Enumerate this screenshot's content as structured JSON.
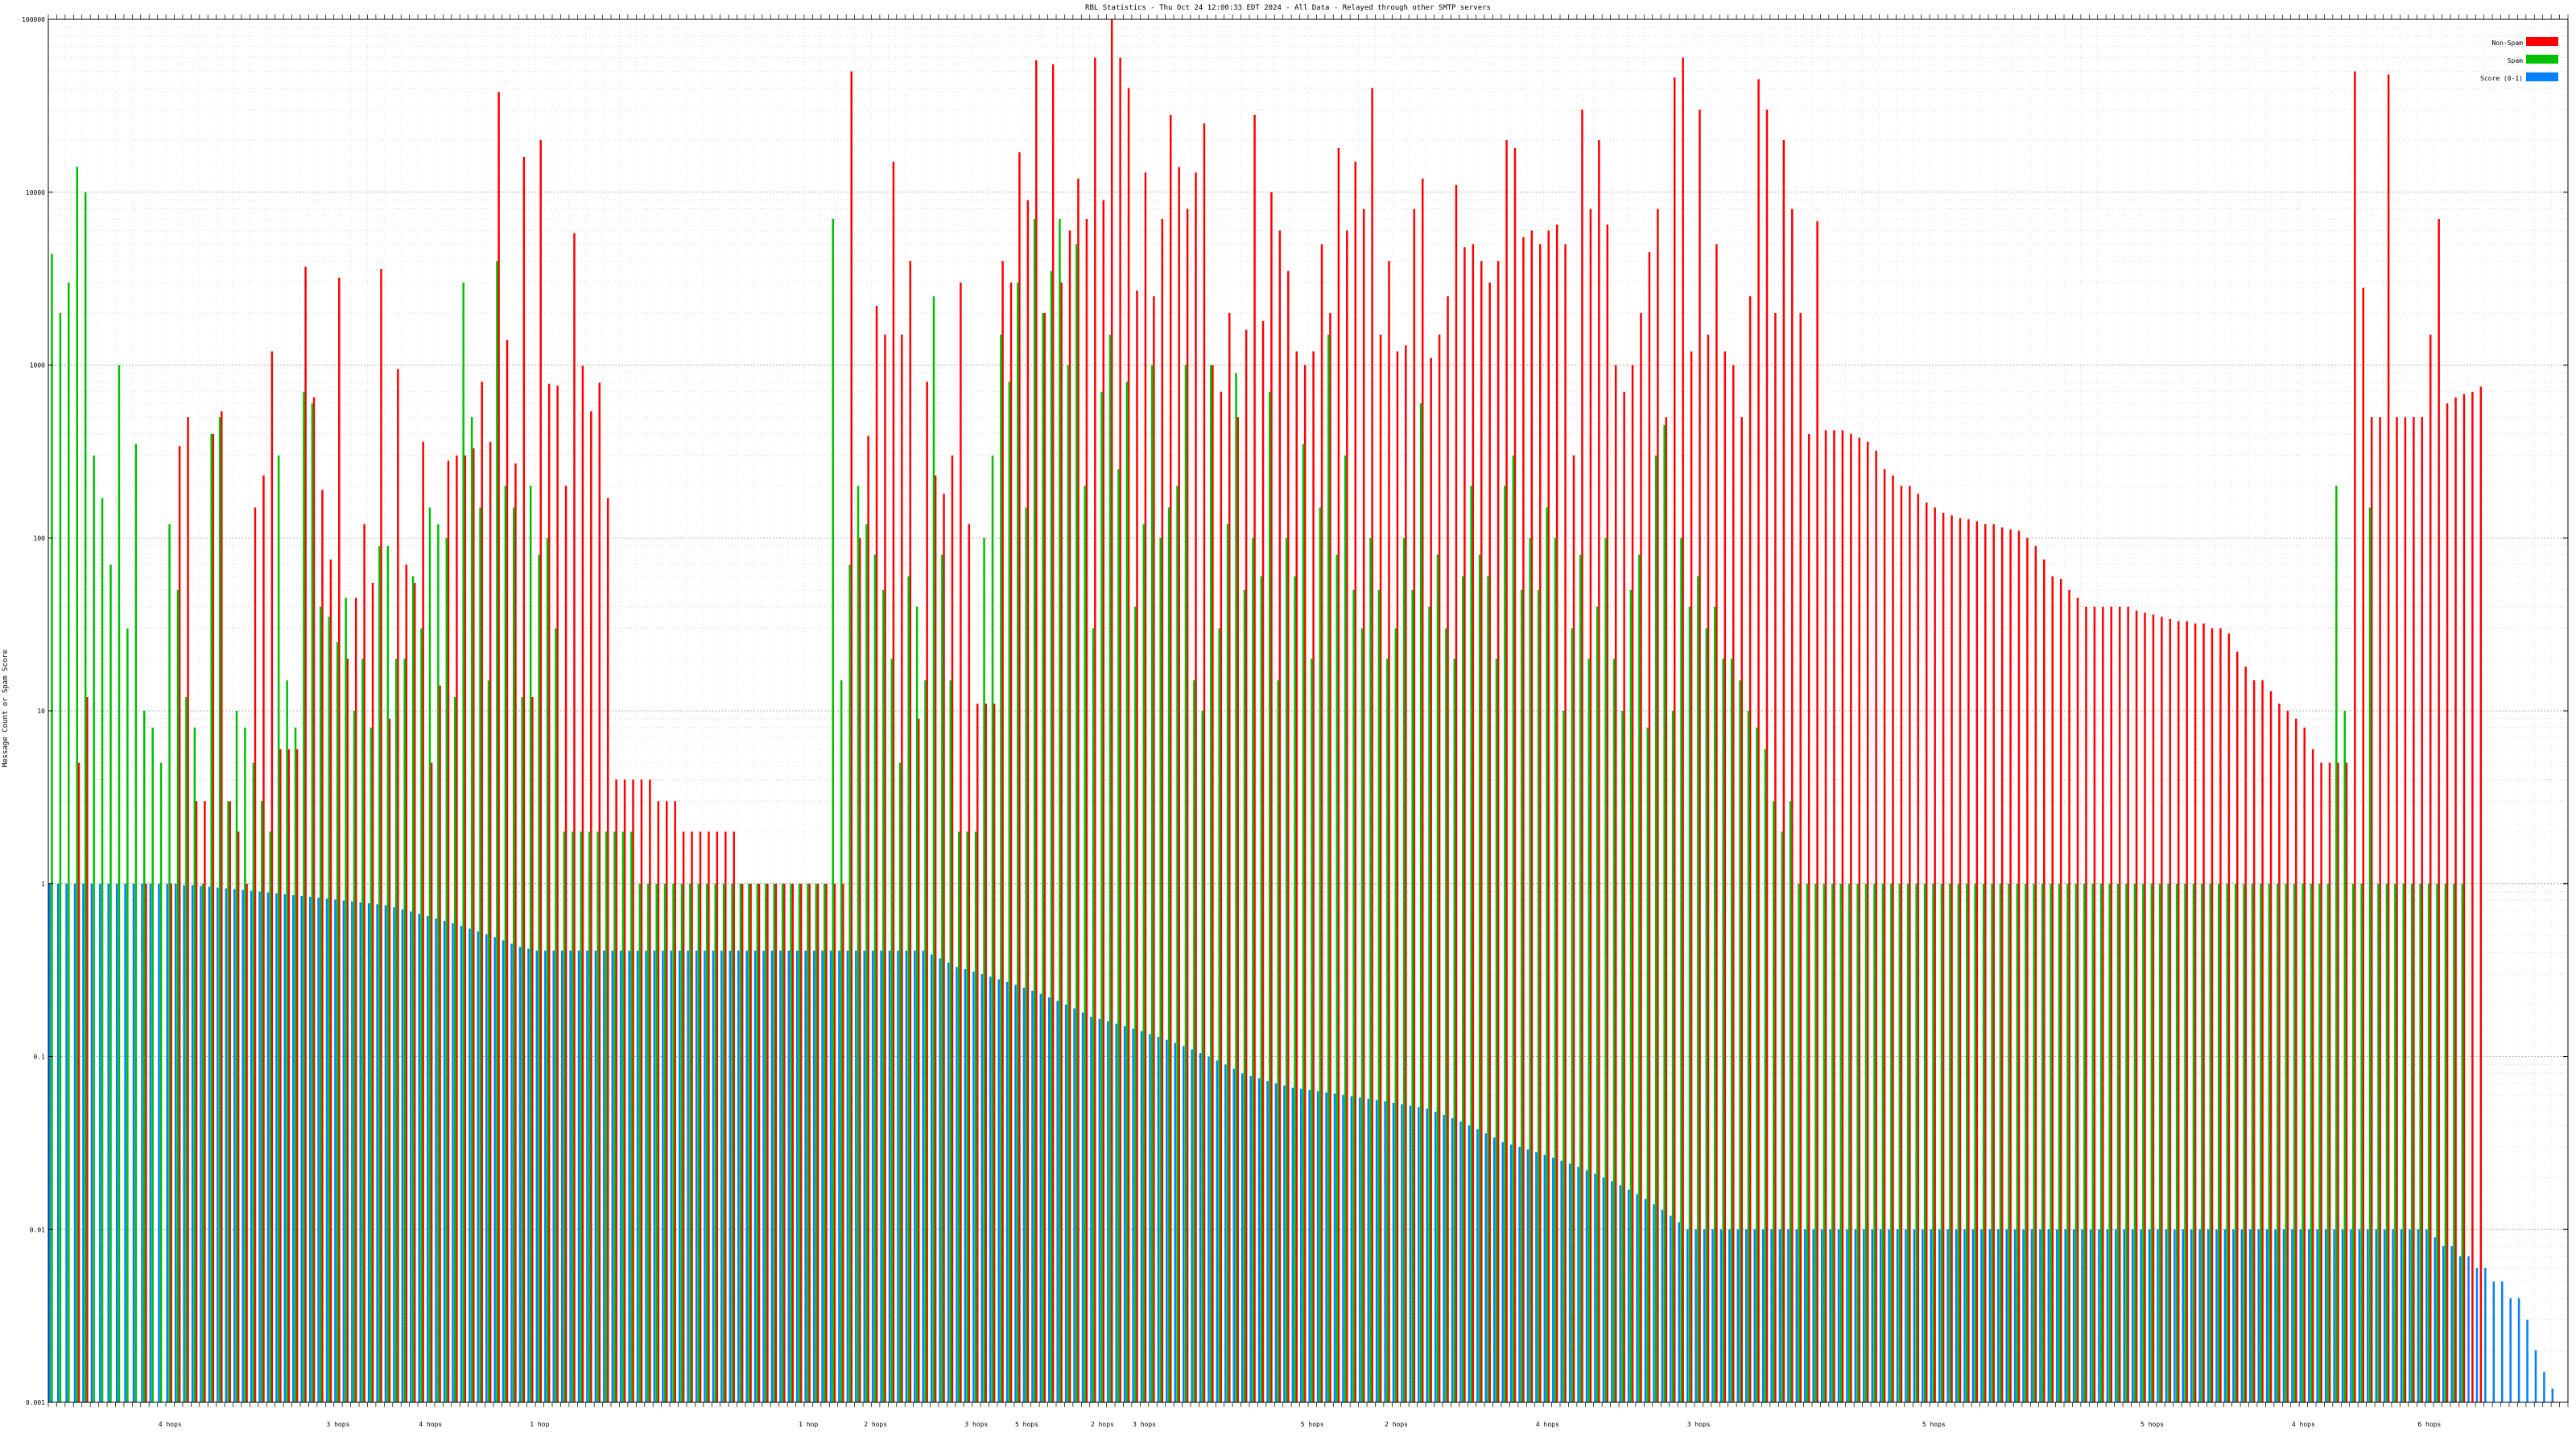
{
  "chart_data": {
    "type": "bar",
    "title": "RBL Statistics - Thu Oct 24 12:00:33 EDT 2024 - All Data - Relayed through other SMTP servers",
    "xlabel": "",
    "ylabel": "Message Count or Spam Score",
    "yscale": "log",
    "ylim": [
      0.001,
      100000
    ],
    "y_ticks": [
      {
        "value": 100000,
        "label": "100000"
      },
      {
        "value": 10000,
        "label": "10000"
      },
      {
        "value": 1000,
        "label": "1000"
      },
      {
        "value": 100,
        "label": "100"
      },
      {
        "value": 10,
        "label": "10"
      },
      {
        "value": 1,
        "label": "1"
      },
      {
        "value": 0.1,
        "label": "0.1"
      },
      {
        "value": 0.01,
        "label": "0.01"
      },
      {
        "value": 0.001,
        "label": "0.001"
      }
    ],
    "grid": true,
    "legend_position": "top-right",
    "n_categories": 300,
    "category_group_labels": [
      {
        "index": 14,
        "label": "4 hops"
      },
      {
        "index": 34,
        "label": "3 hops"
      },
      {
        "index": 45,
        "label": "4 hops"
      },
      {
        "index": 58,
        "label": "1 hop"
      },
      {
        "index": 90,
        "label": "1 hop"
      },
      {
        "index": 98,
        "label": "2 hops"
      },
      {
        "index": 110,
        "label": "3 hops"
      },
      {
        "index": 116,
        "label": "5 hops"
      },
      {
        "index": 125,
        "label": "2 hops"
      },
      {
        "index": 130,
        "label": "3 hops"
      },
      {
        "index": 150,
        "label": "5 hops"
      },
      {
        "index": 160,
        "label": "2 hops"
      },
      {
        "index": 178,
        "label": "4 hops"
      },
      {
        "index": 196,
        "label": "3 hops"
      },
      {
        "index": 224,
        "label": "5 hops"
      },
      {
        "index": 250,
        "label": "5 hops"
      },
      {
        "index": 268,
        "label": "4 hops"
      },
      {
        "index": 283,
        "label": "6 hops"
      }
    ],
    "series": [
      {
        "name": "Non-Spam",
        "color": "#ff0000",
        "values": [
          0,
          0,
          0,
          5,
          12,
          0,
          0,
          0,
          0,
          0,
          0,
          1,
          0,
          0,
          1,
          340,
          500,
          3,
          3,
          400,
          540,
          3,
          2,
          1,
          150,
          230,
          1200,
          6,
          6,
          6,
          3700,
          650,
          190,
          75,
          3200,
          20,
          45,
          120,
          55,
          3600,
          9,
          950,
          70,
          55,
          360,
          5,
          14,
          280,
          300,
          300,
          330,
          800,
          360,
          38000,
          1400,
          270,
          16000,
          12,
          20000,
          780,
          760,
          200,
          5800,
          990,
          540,
          790,
          170,
          4,
          4,
          4,
          4,
          4,
          3,
          3,
          3,
          2,
          2,
          2,
          2,
          2,
          2,
          2,
          1,
          1,
          1,
          1,
          1,
          1,
          1,
          1,
          1,
          1,
          1,
          1,
          1,
          50000,
          100,
          390,
          2200,
          1500,
          15000,
          1500,
          4000,
          9,
          800,
          230,
          180,
          300,
          3000,
          120,
          11,
          11,
          11,
          4000,
          3000,
          17000,
          9000,
          58000,
          2000,
          55000,
          3000,
          6000,
          12000,
          7000,
          60000,
          9000,
          150000,
          60000,
          40000,
          2700,
          13000,
          2500,
          7000,
          28000,
          14000,
          8000,
          13000,
          25000,
          1000,
          700,
          2000,
          500,
          1600,
          28000,
          1800,
          10000,
          6000,
          3500,
          1200,
          1000,
          1200,
          5000,
          2000,
          18000,
          6000,
          15000,
          8000,
          40000,
          1500,
          4000,
          1200,
          1300,
          8000,
          12000,
          1100,
          1500,
          2500,
          11000,
          4800,
          5000,
          4000,
          3000,
          4000,
          20000,
          18000,
          5500,
          6000,
          5000,
          6000,
          6500,
          5000,
          300,
          30000,
          8000,
          20000,
          6500,
          1000,
          700,
          1000,
          2000,
          4500,
          8000,
          500,
          46000,
          60000,
          1200,
          30000,
          1500,
          5000,
          1200,
          1000,
          500,
          2500,
          45000,
          30000,
          2000,
          20000,
          8000,
          2000,
          400,
          6800,
          420,
          420,
          420,
          400,
          380,
          360,
          320,
          250,
          230,
          200,
          200,
          180,
          160,
          150,
          140,
          135,
          130,
          128,
          125,
          120,
          120,
          115,
          112,
          110,
          100,
          90,
          75,
          60,
          58,
          50,
          45,
          40,
          40,
          40,
          40,
          40,
          40,
          38,
          37,
          36,
          35,
          34,
          33,
          33,
          32,
          32,
          30,
          30,
          28,
          22,
          18,
          15,
          15,
          13,
          11,
          10,
          9,
          8,
          6,
          5,
          5,
          5,
          5,
          50000,
          2800,
          500,
          500,
          48000,
          500,
          500,
          500,
          500,
          1500,
          7000,
          600,
          650,
          680,
          700,
          750
        ]
      },
      {
        "name": "Spam",
        "color": "#00c000",
        "values": [
          4400,
          2000,
          3000,
          14000,
          10000,
          300,
          170,
          70,
          1000,
          30,
          350,
          10,
          8,
          5,
          120,
          50,
          12,
          8,
          1,
          400,
          500,
          3,
          10,
          8,
          5,
          3,
          2,
          300,
          15,
          8,
          700,
          600,
          40,
          35,
          25,
          45,
          10,
          20,
          8,
          90,
          90,
          20,
          20,
          60,
          30,
          150,
          120,
          100,
          12,
          3000,
          500,
          150,
          15,
          4000,
          200,
          150,
          12,
          200,
          80,
          100,
          30,
          2,
          2,
          2,
          2,
          2,
          2,
          2,
          2,
          2,
          1,
          1,
          1,
          1,
          1,
          1,
          1,
          1,
          1,
          1,
          1,
          1,
          1,
          1,
          1,
          1,
          1,
          1,
          1,
          1,
          1,
          1,
          1,
          7000,
          15,
          70,
          200,
          120,
          80,
          50,
          20,
          5,
          60,
          40,
          15,
          2500,
          80,
          15,
          2,
          2,
          2,
          100,
          300,
          1500,
          800,
          3000,
          150,
          7000,
          2000,
          3500,
          7000,
          1000,
          5000,
          200,
          30,
          700,
          1500,
          250,
          800,
          40,
          120,
          1000,
          100,
          150,
          200,
          1000,
          15,
          10,
          1000,
          30,
          120,
          900,
          50,
          100,
          60,
          700,
          15,
          100,
          60,
          350,
          20,
          150,
          1500,
          80,
          300,
          50,
          30,
          100,
          50,
          20,
          30,
          100,
          50,
          600,
          40,
          80,
          30,
          20,
          60,
          200,
          80,
          60,
          20,
          200,
          300,
          50,
          100,
          50,
          150,
          100,
          10,
          30,
          80,
          20,
          40,
          100,
          20,
          10,
          50,
          80,
          8,
          300,
          450,
          10,
          100,
          40,
          60,
          30,
          40,
          20,
          20,
          15,
          10,
          8,
          6,
          3,
          2,
          3,
          1,
          1,
          1,
          1,
          1,
          1,
          1,
          1,
          1,
          1,
          1,
          1,
          1,
          1,
          1,
          1,
          1,
          1,
          1,
          1,
          1,
          1,
          1,
          1,
          1,
          1,
          1,
          1,
          1,
          1,
          1,
          1,
          1,
          1,
          1,
          1,
          1,
          1,
          1,
          1,
          1,
          1,
          1,
          1,
          1,
          1,
          1,
          1,
          1,
          1,
          1,
          1,
          1,
          1,
          1,
          1,
          1,
          1,
          1,
          1,
          1,
          1,
          1,
          1,
          200,
          10,
          1,
          1,
          150,
          1,
          1,
          1,
          1,
          1,
          1,
          1,
          1,
          1,
          1,
          1
        ]
      },
      {
        "name": "Score (0-1)",
        "color": "#0080ff",
        "values": [
          1,
          1,
          1,
          1,
          1,
          1,
          1,
          1,
          1,
          1,
          1,
          1,
          1,
          1,
          1,
          1,
          0.98,
          0.98,
          0.97,
          0.96,
          0.95,
          0.94,
          0.93,
          0.92,
          0.91,
          0.9,
          0.89,
          0.88,
          0.87,
          0.86,
          0.85,
          0.84,
          0.83,
          0.82,
          0.81,
          0.8,
          0.79,
          0.78,
          0.77,
          0.76,
          0.75,
          0.73,
          0.71,
          0.69,
          0.67,
          0.65,
          0.63,
          0.61,
          0.59,
          0.57,
          0.55,
          0.53,
          0.51,
          0.49,
          0.47,
          0.45,
          0.43,
          0.42,
          0.41,
          0.41,
          0.41,
          0.41,
          0.41,
          0.41,
          0.41,
          0.41,
          0.41,
          0.41,
          0.41,
          0.41,
          0.41,
          0.41,
          0.41,
          0.41,
          0.41,
          0.41,
          0.41,
          0.41,
          0.41,
          0.41,
          0.41,
          0.41,
          0.41,
          0.41,
          0.41,
          0.41,
          0.41,
          0.41,
          0.41,
          0.41,
          0.41,
          0.41,
          0.41,
          0.41,
          0.41,
          0.41,
          0.41,
          0.41,
          0.41,
          0.41,
          0.41,
          0.41,
          0.41,
          0.41,
          0.41,
          0.39,
          0.37,
          0.35,
          0.33,
          0.32,
          0.31,
          0.3,
          0.29,
          0.28,
          0.27,
          0.26,
          0.25,
          0.24,
          0.23,
          0.22,
          0.21,
          0.2,
          0.19,
          0.18,
          0.17,
          0.165,
          0.16,
          0.155,
          0.15,
          0.145,
          0.14,
          0.135,
          0.13,
          0.125,
          0.12,
          0.115,
          0.11,
          0.105,
          0.1,
          0.095,
          0.09,
          0.085,
          0.08,
          0.077,
          0.075,
          0.072,
          0.07,
          0.068,
          0.066,
          0.065,
          0.064,
          0.063,
          0.062,
          0.061,
          0.06,
          0.059,
          0.058,
          0.057,
          0.056,
          0.055,
          0.054,
          0.053,
          0.052,
          0.051,
          0.05,
          0.048,
          0.046,
          0.044,
          0.042,
          0.04,
          0.038,
          0.036,
          0.034,
          0.032,
          0.031,
          0.03,
          0.029,
          0.028,
          0.027,
          0.026,
          0.025,
          0.024,
          0.023,
          0.022,
          0.021,
          0.02,
          0.019,
          0.018,
          0.017,
          0.016,
          0.015,
          0.014,
          0.013,
          0.012,
          0.011,
          0.01,
          0.01,
          0.01,
          0.01,
          0.01,
          0.01,
          0.01,
          0.01,
          0.01,
          0.01,
          0.01,
          0.01,
          0.01,
          0.01,
          0.01,
          0.01,
          0.01,
          0.01,
          0.01,
          0.01,
          0.01,
          0.01,
          0.01,
          0.01,
          0.01,
          0.01,
          0.01,
          0.01,
          0.01,
          0.01,
          0.01,
          0.01,
          0.01,
          0.01,
          0.01,
          0.01,
          0.01,
          0.01,
          0.01,
          0.01,
          0.01,
          0.01,
          0.01,
          0.01,
          0.01,
          0.01,
          0.01,
          0.01,
          0.01,
          0.01,
          0.01,
          0.01,
          0.01,
          0.01,
          0.01,
          0.01,
          0.01,
          0.01,
          0.01,
          0.01,
          0.01,
          0.01,
          0.01,
          0.01,
          0.01,
          0.01,
          0.01,
          0.01,
          0.01,
          0.01,
          0.01,
          0.01,
          0.01,
          0.01,
          0.01,
          0.01,
          0.01,
          0.01,
          0.01,
          0.01,
          0.01,
          0.01,
          0.01,
          0.01,
          0.01,
          0.01,
          0.01,
          0.01,
          0.01,
          0.009,
          0.008,
          0.008,
          0.007,
          0.007,
          0.006,
          0.006,
          0.005,
          0.005,
          0.004,
          0.004,
          0.003,
          0.002,
          0.0015,
          0.0012,
          0.001
        ]
      }
    ]
  }
}
